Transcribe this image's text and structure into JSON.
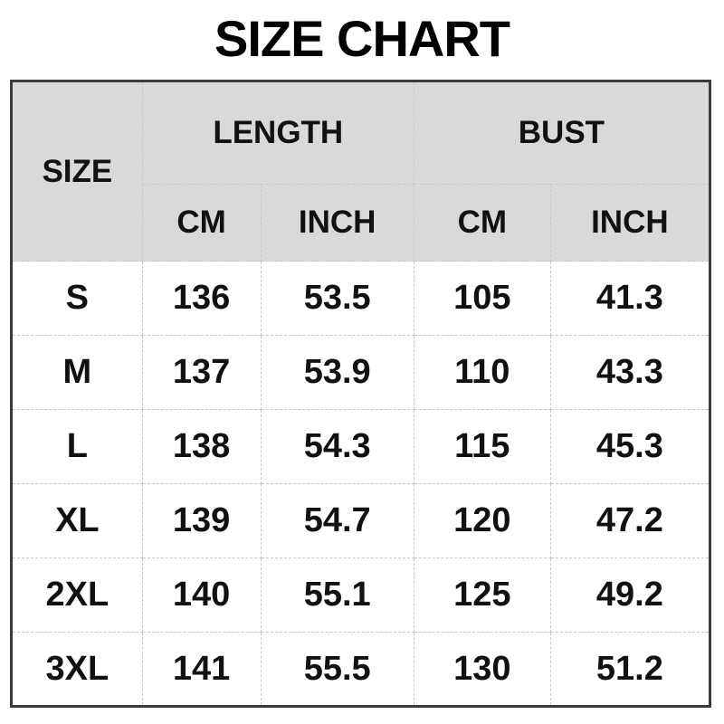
{
  "page": {
    "title": "SIZE CHART"
  },
  "colors": {
    "page_bg": "#ffffff",
    "header_bg": "#d9d9d9",
    "outer_border": "#3a3a3a",
    "inner_border": "#c8c8c8",
    "text": "#111111"
  },
  "chart_data": {
    "type": "table",
    "title": "SIZE CHART",
    "columns": [
      "SIZE",
      "LENGTH CM",
      "LENGTH INCH",
      "BUST CM",
      "BUST INCH"
    ],
    "header": {
      "size": "SIZE",
      "groups": [
        {
          "label": "LENGTH",
          "units": [
            "CM",
            "INCH"
          ]
        },
        {
          "label": "BUST",
          "units": [
            "CM",
            "INCH"
          ]
        }
      ]
    },
    "rows": [
      {
        "size": "S",
        "values": [
          "136",
          "53.5",
          "105",
          "41.3"
        ]
      },
      {
        "size": "M",
        "values": [
          "137",
          "53.9",
          "110",
          "43.3"
        ]
      },
      {
        "size": "L",
        "values": [
          "138",
          "54.3",
          "115",
          "45.3"
        ]
      },
      {
        "size": "XL",
        "values": [
          "139",
          "54.7",
          "120",
          "47.2"
        ]
      },
      {
        "size": "2XL",
        "values": [
          "140",
          "55.1",
          "125",
          "49.2"
        ]
      },
      {
        "size": "3XL",
        "values": [
          "141",
          "55.5",
          "130",
          "51.2"
        ]
      }
    ]
  }
}
